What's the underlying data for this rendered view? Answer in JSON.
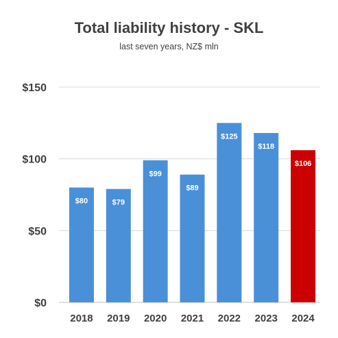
{
  "chart_data": {
    "type": "bar",
    "title": "Total liability history - SKL",
    "subtitle": "last seven years, NZ$ mln",
    "categories": [
      "2018",
      "2019",
      "2020",
      "2021",
      "2022",
      "2023",
      "2024"
    ],
    "values": [
      80,
      79,
      99,
      89,
      125,
      118,
      106
    ],
    "data_labels": [
      "$80",
      "$79",
      "$99",
      "$89",
      "$125",
      "$118",
      "$106"
    ],
    "y_ticks": [
      0,
      50,
      100,
      150
    ],
    "y_tick_labels": [
      "$0",
      "$50",
      "$100",
      "$150"
    ],
    "ylim": [
      0,
      150
    ],
    "grid": true,
    "legend": "none",
    "colors": {
      "bar": "#4a90d9",
      "highlight": "#cc0000",
      "highlight_index": 6,
      "grid": "#d9d9d9",
      "axis": "#bfbfbf",
      "text": "#404040",
      "label_text": "#ffffff"
    }
  }
}
